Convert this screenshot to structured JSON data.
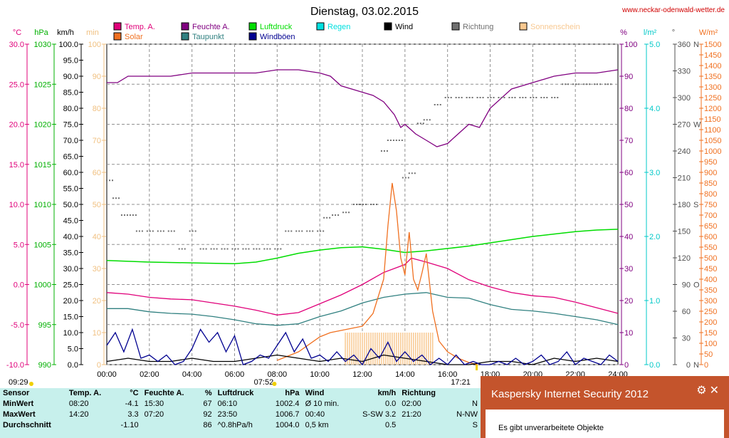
{
  "title": "Dienstag, 03.02.2015",
  "site": "www.neckar-odenwald-wetter.de",
  "legend": [
    {
      "label": "Temp. A.",
      "color": "#e0007a"
    },
    {
      "label": "Feuchte A.",
      "color": "#800080"
    },
    {
      "label": "Luftdruck",
      "color": "#00dd00"
    },
    {
      "label": "Regen",
      "color": "#00e0e0"
    },
    {
      "label": "Wind",
      "color": "#000000"
    },
    {
      "label": "Richtung",
      "color": "#707070"
    },
    {
      "label": "Sonnenschein",
      "color": "#f8c890"
    },
    {
      "label": "Solar",
      "color": "#f07020"
    },
    {
      "label": "Taupunkt",
      "color": "#308080"
    },
    {
      "label": "Windböen",
      "color": "#000090"
    }
  ],
  "axes": {
    "temp": {
      "unit": "°C",
      "ticks": [
        "30.0",
        "25.0",
        "20.0",
        "15.0",
        "10.0",
        "5.0",
        "0.0",
        "-5.0",
        "-10.0"
      ],
      "color": "#e0007a"
    },
    "pressure": {
      "unit": "hPa",
      "ticks": [
        "1030",
        "1025",
        "1020",
        "1015",
        "1010",
        "1005",
        "1000",
        "995",
        "990"
      ],
      "color": "#00b000"
    },
    "wind": {
      "unit": "km/h",
      "ticks": [
        "100.0",
        "95.0",
        "90.0",
        "85.0",
        "80.0",
        "75.0",
        "70.0",
        "65.0",
        "60.0",
        "55.0",
        "50.0",
        "45.0",
        "40.0",
        "35.0",
        "30.0",
        "25.0",
        "20.0",
        "15.0",
        "10.0",
        "5.0",
        "0.0"
      ],
      "color": "#000000"
    },
    "sunmin": {
      "unit": "min",
      "ticks": [
        "100",
        "90",
        "80",
        "70",
        "60",
        "50",
        "40",
        "30",
        "20",
        "10",
        "0"
      ],
      "color": "#f0c080"
    },
    "humidity": {
      "unit": "%",
      "ticks": [
        "100",
        "90",
        "80",
        "70",
        "60",
        "50",
        "40",
        "30",
        "20",
        "10",
        "0"
      ],
      "color": "#800080"
    },
    "rain": {
      "unit": "l/m²",
      "ticks": [
        "5.0",
        "4.0",
        "3.0",
        "2.0",
        "1.0",
        "0.0"
      ],
      "color": "#00c8c8"
    },
    "direction": {
      "unit": "°",
      "ticks": [
        "360",
        "330",
        "300",
        "270",
        "240",
        "210",
        "180",
        "150",
        "120",
        "90",
        "60",
        "30",
        "0"
      ],
      "compass": [
        "N",
        "",
        "",
        "W",
        "",
        "",
        "S",
        "",
        "",
        "O",
        "",
        "",
        "N"
      ],
      "color": "#505050"
    },
    "solar": {
      "unit": "W/m²",
      "ticks": [
        "1500",
        "1450",
        "1400",
        "1350",
        "1300",
        "1250",
        "1200",
        "1150",
        "1100",
        "1050",
        "1000",
        "950",
        "900",
        "850",
        "800",
        "750",
        "700",
        "650",
        "600",
        "550",
        "500",
        "450",
        "400",
        "350",
        "300",
        "250",
        "200",
        "150",
        "100",
        "50",
        "0"
      ],
      "color": "#f07020"
    }
  },
  "time_ticks": [
    "00:00",
    "02:00",
    "04:00",
    "06:00",
    "08:00",
    "10:00",
    "12:00",
    "14:00",
    "16:00",
    "18:00",
    "20:00",
    "22:00",
    "24:00"
  ],
  "sunrise": "07:52",
  "sunset": "17:21",
  "sunshine_duration": "09:29",
  "chart_data": {
    "type": "line",
    "x_unit": "hours",
    "xlim": [
      0,
      24
    ],
    "series": [
      {
        "name": "Temp. A.",
        "axis": "temp",
        "x": [
          0,
          1,
          2,
          3,
          4,
          5,
          6,
          7,
          8,
          9,
          10,
          11,
          12,
          13,
          14,
          14.3,
          15,
          16,
          17,
          18,
          19,
          20,
          21,
          22,
          23,
          24
        ],
        "values": [
          -1.0,
          -1.2,
          -1.6,
          -1.8,
          -1.9,
          -2.3,
          -2.7,
          -3.2,
          -3.8,
          -3.5,
          -2.4,
          -1.3,
          0.0,
          1.5,
          2.5,
          3.3,
          2.8,
          2.0,
          0.6,
          -0.3,
          -1.0,
          -1.4,
          -1.6,
          -2.2,
          -2.9,
          -3.6
        ]
      },
      {
        "name": "Taupunkt",
        "axis": "temp",
        "x": [
          0,
          1,
          2,
          3,
          4,
          5,
          6,
          7,
          8,
          9,
          10,
          11,
          12,
          13,
          14,
          15,
          16,
          17,
          18,
          19,
          20,
          21,
          22,
          23,
          24
        ],
        "values": [
          -3.0,
          -3.0,
          -3.4,
          -3.6,
          -3.7,
          -4.0,
          -4.4,
          -4.9,
          -5.1,
          -4.9,
          -4.0,
          -3.3,
          -2.3,
          -1.6,
          -1.2,
          -1.0,
          -1.6,
          -1.7,
          -2.5,
          -3.1,
          -3.3,
          -3.6,
          -4.0,
          -4.4,
          -5.0
        ]
      },
      {
        "name": "Feuchte A.",
        "axis": "humidity",
        "x": [
          0,
          0.5,
          1,
          1.5,
          2,
          3,
          4,
          5,
          6,
          7,
          8,
          9,
          10,
          10.5,
          11,
          12,
          12.5,
          13,
          13.5,
          13.8,
          14,
          14.5,
          15,
          15.5,
          16,
          16.5,
          17,
          17.5,
          18,
          19,
          20,
          21,
          22,
          23,
          24
        ],
        "values": [
          88,
          88,
          90,
          90,
          90,
          90,
          91,
          91,
          91,
          91,
          92,
          92,
          91,
          90,
          87,
          85,
          84,
          82,
          78,
          74,
          75,
          72,
          70,
          68,
          69,
          72,
          75,
          74,
          80,
          86,
          88,
          90,
          91,
          91,
          92
        ]
      },
      {
        "name": "Luftdruck",
        "axis": "pressure",
        "x": [
          0,
          2,
          4,
          6,
          7,
          8,
          9,
          10,
          11,
          12,
          13,
          14,
          15,
          16,
          17,
          18,
          19,
          20,
          21,
          22,
          23,
          24
        ],
        "values": [
          1003.0,
          1002.8,
          1002.7,
          1002.6,
          1002.8,
          1003.3,
          1003.9,
          1004.3,
          1004.6,
          1004.7,
          1004.4,
          1004.0,
          1004.2,
          1004.5,
          1004.8,
          1005.2,
          1005.6,
          1006.0,
          1006.3,
          1006.6,
          1006.8,
          1006.9
        ]
      },
      {
        "name": "Solar",
        "axis": "solar",
        "x": [
          8,
          9,
          10,
          10.5,
          11,
          11.5,
          12,
          12.5,
          13,
          13.2,
          13.4,
          13.6,
          13.8,
          14,
          14.2,
          14.4,
          14.6,
          14.8,
          15,
          15.3,
          15.6,
          16,
          16.5,
          17,
          17.4
        ],
        "values": [
          20,
          60,
          130,
          150,
          160,
          170,
          180,
          240,
          400,
          650,
          850,
          720,
          500,
          420,
          620,
          400,
          350,
          430,
          520,
          250,
          110,
          60,
          30,
          10,
          0
        ]
      },
      {
        "name": "Wind",
        "axis": "wind",
        "x": [
          0,
          1,
          2,
          3,
          4,
          5,
          6,
          7,
          8,
          9,
          10,
          11,
          12,
          13,
          14,
          15,
          16,
          17,
          18,
          19,
          20,
          21,
          22,
          23,
          24
        ],
        "values": [
          1,
          2,
          1,
          1,
          2,
          1,
          1,
          2,
          3,
          2,
          1,
          2,
          1,
          3,
          2,
          1,
          0,
          0,
          1,
          1,
          0,
          2,
          1,
          2,
          1
        ]
      },
      {
        "name": "Windböen",
        "axis": "wind",
        "x": [
          0,
          0.4,
          0.8,
          1.2,
          1.6,
          2,
          2.4,
          2.8,
          3.2,
          3.6,
          4,
          4.4,
          4.8,
          5.2,
          5.6,
          6,
          6.4,
          6.8,
          7.2,
          7.6,
          8,
          8.4,
          8.8,
          9.2,
          9.6,
          10,
          10.4,
          10.8,
          11.2,
          11.6,
          12,
          12.4,
          12.8,
          13.2,
          13.6,
          14,
          14.4,
          14.8,
          15.2,
          15.6,
          16,
          16.4,
          16.8,
          17.2,
          17.6,
          18,
          18.4,
          18.8,
          19.2,
          19.6,
          20,
          20.4,
          20.8,
          21.2,
          21.6,
          22,
          22.4,
          22.8,
          23.2,
          23.6,
          24
        ],
        "values": [
          6,
          10,
          4,
          11,
          2,
          3,
          1,
          3,
          0,
          1,
          5,
          11,
          7,
          10,
          4,
          9,
          0,
          1,
          3,
          2,
          6,
          10,
          4,
          8,
          2,
          3,
          1,
          4,
          1,
          3,
          0,
          5,
          2,
          7,
          1,
          4,
          1,
          3,
          0,
          2,
          0,
          3,
          0,
          1,
          0,
          0,
          1,
          0,
          2,
          0,
          1,
          3,
          0,
          1,
          4,
          0,
          2,
          1,
          0,
          3,
          1
        ]
      },
      {
        "name": "Richtung",
        "axis": "direction",
        "x": [
          0.1,
          0.4,
          0.8,
          1.2,
          1.5,
          2,
          2.5,
          3,
          3.5,
          4,
          4.5,
          5,
          5.5,
          6,
          6.5,
          7,
          7.5,
          8,
          8.5,
          9,
          9.5,
          10,
          10.3,
          10.7,
          11.2,
          11.7,
          12,
          12.5,
          13,
          13.3,
          13.7,
          14,
          14.3,
          14.7,
          15,
          15.5,
          16,
          16.5,
          17,
          17.5,
          18,
          18.5,
          19,
          19.5,
          20,
          20.5,
          21,
          21.5,
          22,
          22.5,
          23,
          23.5
        ],
        "values": [
          207,
          187,
          168,
          168,
          150,
          150,
          150,
          150,
          130,
          150,
          130,
          130,
          130,
          130,
          130,
          130,
          130,
          130,
          150,
          150,
          150,
          150,
          165,
          168,
          171,
          180,
          180,
          180,
          240,
          252,
          252,
          210,
          215,
          271,
          275,
          292,
          300,
          300,
          300,
          300,
          300,
          300,
          300,
          300,
          300,
          300,
          300,
          315,
          315,
          315,
          315,
          315
        ]
      }
    ],
    "sunshine_bars": {
      "start": 11.2,
      "end": 15.3,
      "value": 10
    },
    "ylim_wind": [
      0,
      100
    ]
  },
  "stats": {
    "headers": {
      "sensor": "Sensor",
      "temp": "Temp. A.",
      "temp_unit": "°C",
      "hum": "Feuchte A.",
      "hum_unit": "%",
      "press": "Luftdruck",
      "press_unit": "hPa",
      "wind": "Wind",
      "wind_unit": "km/h",
      "dir": "Richtung"
    },
    "rows": [
      {
        "label": "MinWert",
        "temp_t": "08:20",
        "temp_v": "-4.1",
        "hum_t": "15:30",
        "hum_v": "67",
        "press_t": "06:10",
        "press_v": "1002.4",
        "wind_t": "Ø 10 min.",
        "wind_v": "0.0",
        "dir_t": "02:00",
        "dir_v": "N"
      },
      {
        "label": "MaxWert",
        "temp_t": "14:20",
        "temp_v": "3.3",
        "hum_t": "07:20",
        "hum_v": "92",
        "press_t": "23:50",
        "press_v": "1006.7",
        "wind_t": "00:40",
        "wind_v": "S-SW 3.2",
        "dir_t": "21:20",
        "dir_v": "N-NW"
      },
      {
        "label": "Durchschnitt",
        "temp_t": "",
        "temp_v": "-1.10",
        "hum_t": "",
        "hum_v": "86",
        "press_t": "^0.8hPa/h",
        "press_v": "1004.0",
        "wind_t": "0,5 km",
        "wind_v": "0.5",
        "dir_t": "",
        "dir_v": "S"
      }
    ]
  },
  "popup": {
    "title": "Kaspersky Internet Security 2012",
    "message": "Es gibt unverarbeitete Objekte",
    "controls": "⚙✕"
  }
}
